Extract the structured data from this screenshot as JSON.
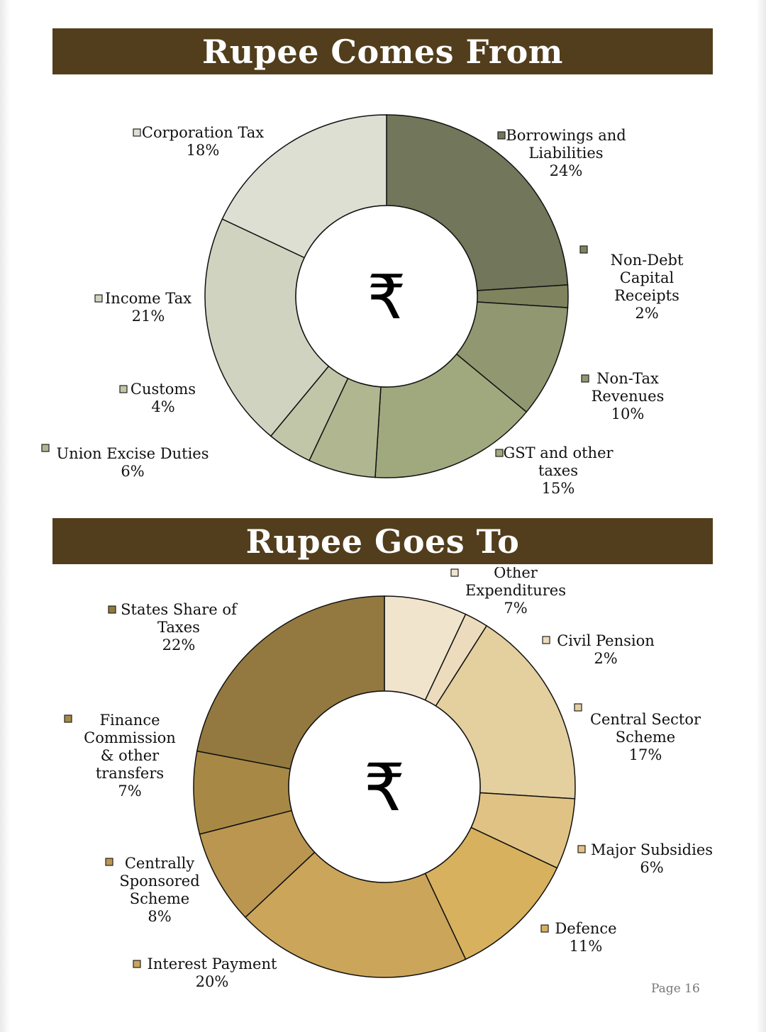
{
  "page": {
    "label": "Page",
    "number": "16"
  },
  "chart_data": [
    {
      "type": "pie",
      "title": "Rupee Comes From",
      "center_symbol": "₹",
      "slices": [
        {
          "name": "Borrowings and Liabilities",
          "value": 24,
          "label": "24%",
          "color": "#72765a"
        },
        {
          "name": "Non-Debt Capital Receipts",
          "value": 2,
          "label": "2%",
          "color": "#7f845f"
        },
        {
          "name": "Non-Tax Revenues",
          "value": 10,
          "label": "10%",
          "color": "#919770"
        },
        {
          "name": "GST and other taxes",
          "value": 15,
          "label": "15%",
          "color": "#a0a87e"
        },
        {
          "name": "Union Excise Duties",
          "value": 6,
          "label": "6%",
          "color": "#b0b68f"
        },
        {
          "name": "Customs",
          "value": 4,
          "label": "4%",
          "color": "#c2c6a8"
        },
        {
          "name": "Income Tax",
          "value": 21,
          "label": "21%",
          "color": "#d0d3c0"
        },
        {
          "name": "Corporation Tax",
          "value": 18,
          "label": "18%",
          "color": "#dedfd3"
        }
      ]
    },
    {
      "type": "pie",
      "title": "Rupee Goes To",
      "center_symbol": "₹",
      "slices": [
        {
          "name": "Other Expenditures",
          "value": 7,
          "label": "7%",
          "color": "#f1e4cd"
        },
        {
          "name": "Civil Pension",
          "value": 2,
          "label": "2%",
          "color": "#ecdcbd"
        },
        {
          "name": "Central Sector Scheme",
          "value": 17,
          "label": "17%",
          "color": "#e4cf9f"
        },
        {
          "name": "Major Subsidies",
          "value": 6,
          "label": "6%",
          "color": "#e0c384"
        },
        {
          "name": "Defence",
          "value": 11,
          "label": "11%",
          "color": "#d8b15e"
        },
        {
          "name": "Interest Payment",
          "value": 20,
          "label": "20%",
          "color": "#cba55a"
        },
        {
          "name": "Centrally Sponsored Scheme",
          "value": 8,
          "label": "8%",
          "color": "#ba9650"
        },
        {
          "name": "Finance Commission & other transfers",
          "value": 7,
          "label": "7%",
          "color": "#a78945"
        },
        {
          "name": "States Share of Taxes",
          "value": 22,
          "label": "22%",
          "color": "#93793f"
        }
      ]
    }
  ]
}
